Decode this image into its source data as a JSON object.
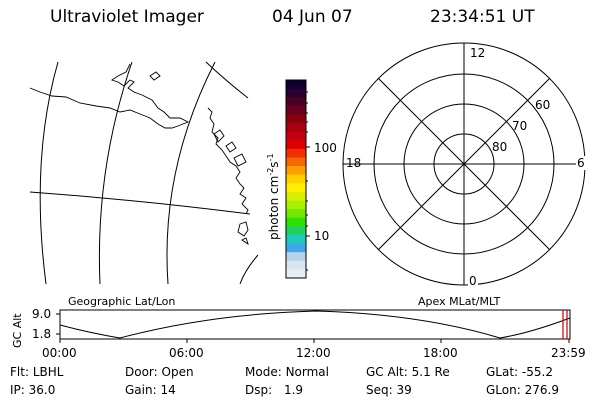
{
  "header": {
    "title": "Ultraviolet Imager",
    "date": "04 Jun 07",
    "time": "23:34:51 UT"
  },
  "colorbar": {
    "ticks": [
      "100",
      "10"
    ],
    "unit_prefix": "photon cm",
    "unit_exp1": "-2",
    "unit_mid": "s",
    "unit_exp2": "-1",
    "colors": [
      "#0b0030",
      "#2a0030",
      "#4a0025",
      "#6a0020",
      "#8a0010",
      "#a80010",
      "#c40010",
      "#dd0000",
      "#f03000",
      "#f86800",
      "#fca000",
      "#ffd000",
      "#fff000",
      "#d8f000",
      "#a8f000",
      "#70e800",
      "#30e000",
      "#20d060",
      "#20c8c0",
      "#40a8e8",
      "#b8d0e8",
      "#d8e4ee",
      "#e8eef4"
    ]
  },
  "polar": {
    "mlt_labels": {
      "top": "12",
      "left": "18",
      "right": "6",
      "bottom": "0"
    },
    "lat_labels": [
      "60",
      "70",
      "80"
    ]
  },
  "panels": {
    "left_caption": "Geographic Lat/Lon",
    "right_caption": "Apex MLat/MLT"
  },
  "alt_plot": {
    "ylabel": "GC Alt",
    "ymax": "9.0",
    "ymin": "1.8",
    "xticks": [
      "00:00",
      "06:00",
      "12:00",
      "18:00",
      "23:59"
    ]
  },
  "footer": {
    "row1": [
      {
        "label": "Flt:",
        "value": "LBHL"
      },
      {
        "label": "Door:",
        "value": "Open"
      },
      {
        "label": "Mode:",
        "value": "Normal"
      },
      {
        "label": "GC Alt:",
        "value": "5.1 Re"
      },
      {
        "label": "GLat:",
        "value": "-55.2"
      }
    ],
    "row2": [
      {
        "label": "IP:",
        "value": "36.0"
      },
      {
        "label": "Gain:",
        "value": "14"
      },
      {
        "label": "Dsp:",
        "value": "1.9"
      },
      {
        "label": "Seq:",
        "value": "39"
      },
      {
        "label": "GLon:",
        "value": "276.9"
      }
    ]
  }
}
